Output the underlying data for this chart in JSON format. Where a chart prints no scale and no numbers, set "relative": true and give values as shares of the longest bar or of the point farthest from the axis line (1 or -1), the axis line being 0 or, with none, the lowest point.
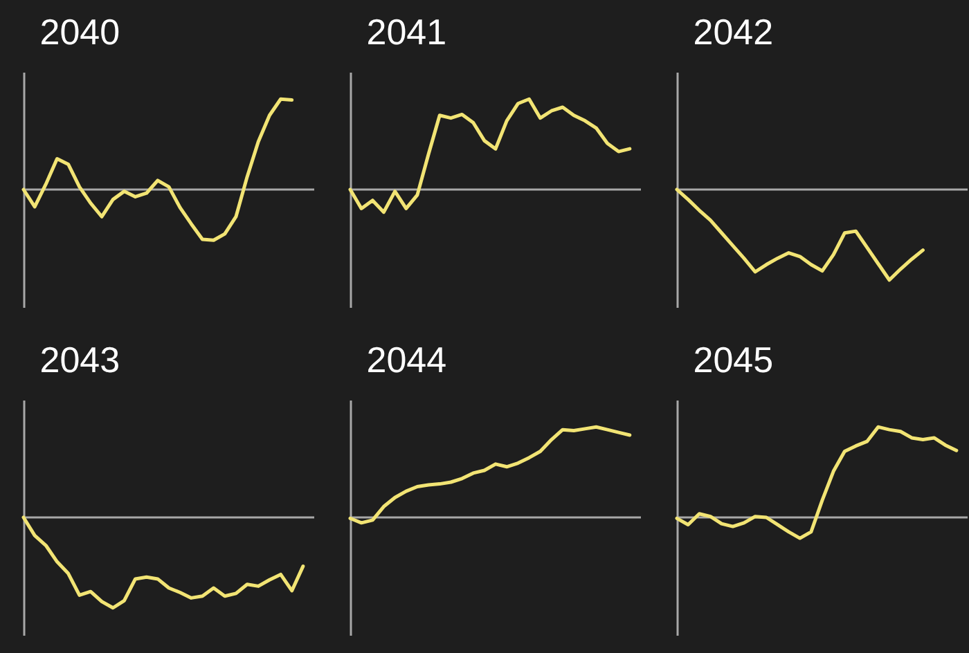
{
  "chart_data": [
    {
      "type": "line",
      "title": "2040",
      "relative": true,
      "color": "#f2e474",
      "categories": [
        null,
        null,
        null,
        null,
        null,
        null,
        null,
        null,
        null,
        null,
        null,
        null,
        null,
        null,
        null,
        null,
        null,
        null,
        null,
        null,
        null,
        null,
        null,
        null,
        null,
        null,
        null
      ],
      "values": [
        0,
        -0.19,
        0.06,
        0.34,
        0.28,
        0.03,
        -0.15,
        -0.3,
        -0.11,
        -0.02,
        -0.08,
        -0.04,
        0.1,
        0.03,
        -0.2,
        -0.38,
        -0.55,
        -0.56,
        -0.49,
        -0.3,
        0.14,
        0.53,
        0.82,
        1,
        0.99,
        null,
        null
      ]
    },
    {
      "type": "line",
      "title": "2041",
      "relative": true,
      "color": "#f2e474",
      "categories": [
        null,
        null,
        null,
        null,
        null,
        null,
        null,
        null,
        null,
        null,
        null,
        null,
        null,
        null,
        null,
        null,
        null,
        null,
        null,
        null,
        null,
        null,
        null,
        null,
        null,
        null,
        null
      ],
      "values": [
        0,
        -0.21,
        -0.12,
        -0.25,
        -0.02,
        -0.21,
        -0.06,
        0.39,
        0.82,
        0.79,
        0.83,
        0.74,
        0.54,
        0.45,
        0.76,
        0.95,
        1,
        0.79,
        0.87,
        0.91,
        0.82,
        0.76,
        0.68,
        0.51,
        0.42,
        0.45,
        null
      ]
    },
    {
      "type": "line",
      "title": "2042",
      "relative": true,
      "color": "#f2e474",
      "categories": [
        null,
        null,
        null,
        null,
        null,
        null,
        null,
        null,
        null,
        null,
        null,
        null,
        null,
        null,
        null,
        null,
        null,
        null,
        null,
        null,
        null,
        null,
        null,
        null,
        null,
        null,
        null
      ],
      "values": [
        0,
        -0.11,
        -0.23,
        -0.34,
        -0.48,
        -0.62,
        -0.76,
        -0.91,
        -0.83,
        -0.76,
        -0.7,
        -0.74,
        -0.83,
        -0.9,
        -0.72,
        -0.48,
        -0.46,
        -0.64,
        -0.82,
        -1,
        -0.88,
        -0.77,
        -0.67,
        null,
        null,
        null,
        null
      ]
    },
    {
      "type": "line",
      "title": "2043",
      "relative": true,
      "color": "#f2e474",
      "categories": [
        null,
        null,
        null,
        null,
        null,
        null,
        null,
        null,
        null,
        null,
        null,
        null,
        null,
        null,
        null,
        null,
        null,
        null,
        null,
        null,
        null,
        null,
        null,
        null,
        null,
        null,
        null
      ],
      "values": [
        0,
        -0.2,
        -0.31,
        -0.49,
        -0.62,
        -0.86,
        -0.82,
        -0.93,
        -1,
        -0.92,
        -0.68,
        -0.66,
        -0.68,
        -0.78,
        -0.83,
        -0.89,
        -0.87,
        -0.78,
        -0.87,
        -0.84,
        -0.74,
        -0.76,
        -0.69,
        -0.63,
        -0.81,
        -0.54,
        null
      ]
    },
    {
      "type": "line",
      "title": "2044",
      "relative": true,
      "color": "#f2e474",
      "categories": [
        null,
        null,
        null,
        null,
        null,
        null,
        null,
        null,
        null,
        null,
        null,
        null,
        null,
        null,
        null,
        null,
        null,
        null,
        null,
        null,
        null,
        null,
        null,
        null,
        null,
        null,
        null
      ],
      "values": [
        -0.01,
        -0.06,
        -0.03,
        0.12,
        0.22,
        0.29,
        0.34,
        0.36,
        0.37,
        0.39,
        0.43,
        0.49,
        0.52,
        0.59,
        0.56,
        0.6,
        0.66,
        0.73,
        0.86,
        0.97,
        0.96,
        0.98,
        1,
        0.97,
        0.94,
        0.91,
        null
      ]
    },
    {
      "type": "line",
      "title": "2045",
      "relative": true,
      "color": "#f2e474",
      "categories": [
        null,
        null,
        null,
        null,
        null,
        null,
        null,
        null,
        null,
        null,
        null,
        null,
        null,
        null,
        null,
        null,
        null,
        null,
        null,
        null,
        null,
        null,
        null,
        null,
        null,
        null,
        null
      ],
      "values": [
        -0.01,
        -0.08,
        0.04,
        0.01,
        -0.07,
        -0.1,
        -0.06,
        0.01,
        0,
        -0.08,
        -0.16,
        -0.23,
        -0.16,
        0.19,
        0.51,
        0.73,
        0.79,
        0.84,
        1,
        0.97,
        0.95,
        0.88,
        0.86,
        0.88,
        0.8,
        0.74,
        null
      ]
    }
  ]
}
